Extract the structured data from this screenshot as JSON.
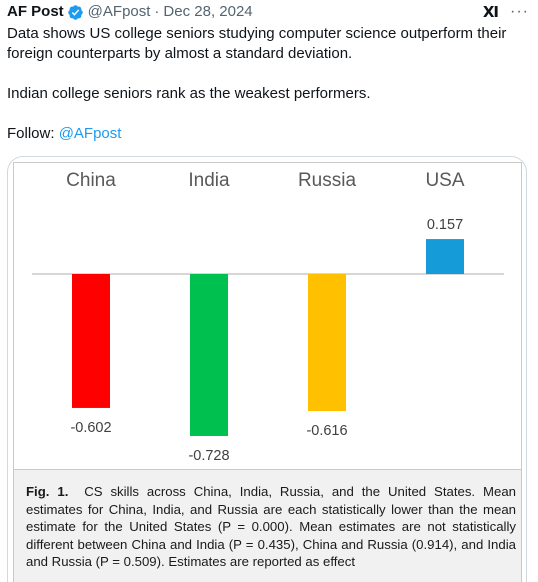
{
  "post": {
    "author_name": "AF Post",
    "handle": "@AFpost",
    "separator": "·",
    "date": "Dec 28, 2024",
    "grok_label": "XI",
    "more_label": "···",
    "paragraph1": "Data shows US college seniors studying computer science outperform their foreign counterparts by almost a standard deviation.",
    "paragraph2": "Indian college seniors rank as the weakest performers.",
    "follow_prefix": "Follow: ",
    "follow_link": "@AFpost",
    "verified_color": "#1d9bf0",
    "link_color": "#1d9bf0"
  },
  "figure": {
    "caption_label": "Fig. 1.",
    "caption_text": "CS skills across China, India, Russia, and the United States. Mean estimates for China, India, and Russia are each statistically lower than the mean estimate for the United States (P = 0.000). Mean estimates are not statistically different between China and India (P = 0.435), China and Russia (0.914), and India and Russia (P = 0.509). Estimates are reported as effect"
  },
  "chart_data": {
    "type": "bar",
    "categories": [
      "China",
      "India",
      "Russia",
      "USA"
    ],
    "values": [
      -0.602,
      -0.728,
      -0.616,
      0.157
    ],
    "value_labels": [
      "-0.602",
      "-0.728",
      "-0.616",
      "0.157"
    ],
    "colors": [
      "#ff0000",
      "#00c14f",
      "#ffc000",
      "#149bd8"
    ],
    "title": "",
    "xlabel": "",
    "ylabel": "",
    "category_axis_position": "top",
    "baseline": 0,
    "grid": false,
    "legend": "none"
  }
}
